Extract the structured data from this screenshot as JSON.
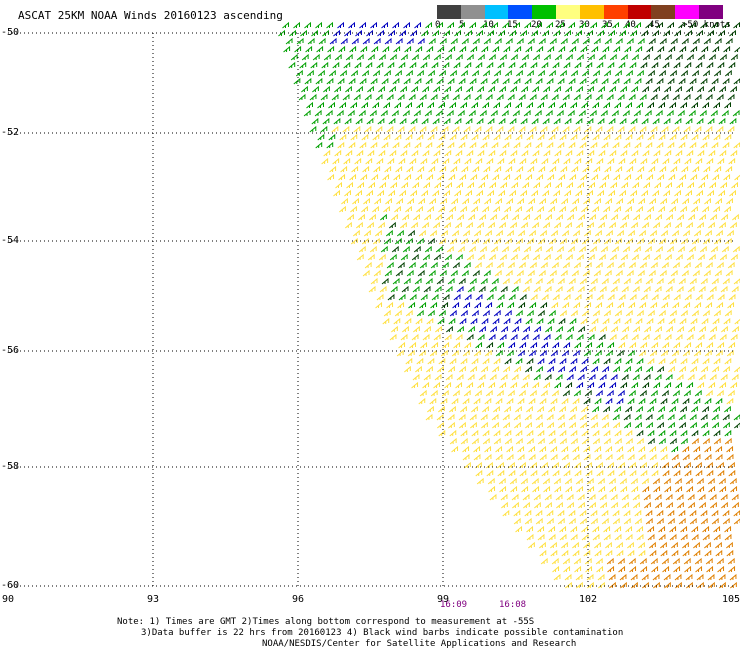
{
  "title": "ASCAT 25KM NOAA Winds 20160123 ascending",
  "legend": {
    "labels": [
      "0",
      "5",
      "10",
      "15",
      "20",
      "25",
      "30",
      "35",
      "40",
      "45",
      ">50 knots"
    ],
    "colors": [
      "#404040",
      "#909090",
      "#00c0ff",
      "#0050ff",
      "#00c000",
      "#ffff80",
      "#ffc000",
      "#ff4000",
      "#c00000",
      "#804020",
      "#ff00ff",
      "#800080"
    ]
  },
  "axes": {
    "lat_labels": [
      "-50",
      "-52",
      "-54",
      "-56",
      "-58",
      "-60"
    ],
    "lon_labels": [
      "90",
      "93",
      "96",
      "99",
      "102",
      "105"
    ],
    "lat_range": [
      -60,
      -50
    ],
    "lon_range": [
      90,
      105
    ]
  },
  "pass_times": [
    "16:09",
    "16:08"
  ],
  "notes": [
    "Note: 1) Times are GMT 2)Times along bottom correspond to measurement at -55S",
    "3)Data buffer is 22 hrs from 20160123 4) Black wind barbs indicate possible contamination",
    "NOAA/NESDIS/Center for Satellite Applications and Research"
  ],
  "colors": {
    "weak": "#0000c0",
    "moderate": "#00a000",
    "strong": "#ffe040",
    "gale": "#e08000",
    "contaminated": "#004000"
  }
}
